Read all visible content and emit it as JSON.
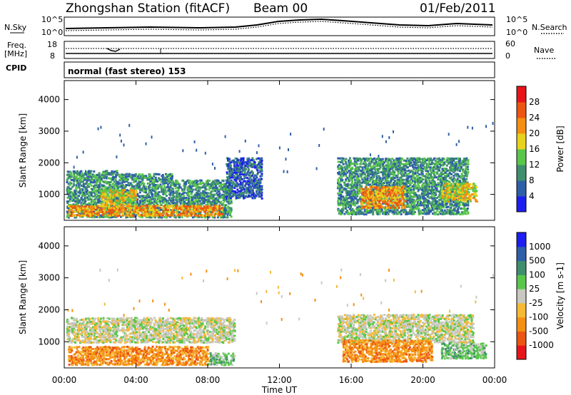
{
  "header": {
    "station": "Zhongshan Station (fitACF)",
    "beam": "Beam 00",
    "date": "01/Feb/2011"
  },
  "summary": {
    "left_label_top": "N.Sky",
    "right_label_top": "N.Search",
    "top_ticks_left": [
      "10^5",
      "10^0"
    ],
    "top_ticks_right": [
      "10^5",
      "10^0"
    ],
    "freq_label": [
      "Freq.",
      "[MHz]"
    ],
    "freq_ticks": [
      "18",
      "8"
    ],
    "nave_ticks": [
      "60",
      "0"
    ],
    "nave_label": "Nave",
    "cpid_label": "CPID",
    "mode_text": "normal (fast stereo) 153"
  },
  "colors": {
    "power": [
      "#1e1ef0",
      "#2e5fa8",
      "#3f8f6e",
      "#59c74a",
      "#e7d21c",
      "#f58f12",
      "#ec5512",
      "#e8141a"
    ],
    "velocity": [
      "#e8141a",
      "#ec5512",
      "#f58f12",
      "#f6b935",
      "#c8c8c0",
      "#59c74a",
      "#3f8f6e",
      "#2e5fa8",
      "#1e1ef0"
    ]
  },
  "chart_data": [
    {
      "type": "heatmap",
      "name": "power",
      "xlabel": "Time UT",
      "ylabel": "Slant Range [km]",
      "xlim": [
        0,
        24
      ],
      "ylim": [
        180,
        4600
      ],
      "yticks": [
        "1000",
        "2000",
        "3000",
        "4000"
      ],
      "xticks": [
        "00:00",
        "04:00",
        "08:00",
        "12:00",
        "16:00",
        "20:00",
        "00:00"
      ],
      "colorbar": {
        "label": "Power [dB]",
        "ticks": [
          "4",
          "8",
          "12",
          "16",
          "20",
          "24",
          "28"
        ],
        "range": [
          0,
          30
        ]
      },
      "bands": [
        {
          "t0": 0.1,
          "t1": 3.0,
          "r0": 300,
          "r1": 1800,
          "level": 8
        },
        {
          "t0": 3.0,
          "t1": 6.0,
          "r0": 300,
          "r1": 1700,
          "level": 10
        },
        {
          "t0": 6.0,
          "t1": 9.3,
          "r0": 300,
          "r1": 1500,
          "level": 10
        },
        {
          "t0": 9.0,
          "t1": 11.0,
          "r0": 900,
          "r1": 2200,
          "level": 6
        },
        {
          "t0": 0.2,
          "t1": 8.8,
          "r0": 350,
          "r1": 700,
          "level": 20
        },
        {
          "t0": 2.0,
          "t1": 4.0,
          "r0": 700,
          "r1": 1200,
          "level": 18
        },
        {
          "t0": 15.2,
          "t1": 22.5,
          "r0": 400,
          "r1": 2200,
          "level": 10
        },
        {
          "t0": 16.5,
          "t1": 19.0,
          "r0": 600,
          "r1": 1300,
          "level": 20
        },
        {
          "t0": 21.0,
          "t1": 23.0,
          "r0": 800,
          "r1": 1400,
          "level": 16
        }
      ]
    },
    {
      "type": "heatmap",
      "name": "velocity",
      "xlabel": "Time UT",
      "ylabel": "Slant Range [km]",
      "xlim": [
        0,
        24
      ],
      "ylim": [
        180,
        4600
      ],
      "yticks": [
        "1000",
        "2000",
        "3000",
        "4000"
      ],
      "xticks": [
        "00:00",
        "04:00",
        "08:00",
        "12:00",
        "16:00",
        "20:00",
        "00:00"
      ],
      "xaxis_title": "Time UT",
      "colorbar": {
        "label": "Velocity [m s-1]",
        "ticks": [
          "1000",
          "500",
          "100",
          "25",
          "-25",
          "-100",
          "-500",
          "-1000"
        ]
      },
      "bands": [
        {
          "t0": 0.1,
          "t1": 9.5,
          "r0": 1000,
          "r1": 1800,
          "level": "-25..25"
        },
        {
          "t0": 0.2,
          "t1": 8.0,
          "r0": 300,
          "r1": 900,
          "level": "-500..-100"
        },
        {
          "t0": 8.0,
          "t1": 9.5,
          "r0": 300,
          "r1": 700,
          "level": "25..100"
        },
        {
          "t0": 15.2,
          "t1": 22.8,
          "r0": 1000,
          "r1": 1900,
          "level": "-25..25"
        },
        {
          "t0": 15.5,
          "t1": 20.5,
          "r0": 400,
          "r1": 1100,
          "level": "-500..-100"
        },
        {
          "t0": 21.0,
          "t1": 23.5,
          "r0": 500,
          "r1": 1000,
          "level": "25..100"
        }
      ]
    }
  ]
}
